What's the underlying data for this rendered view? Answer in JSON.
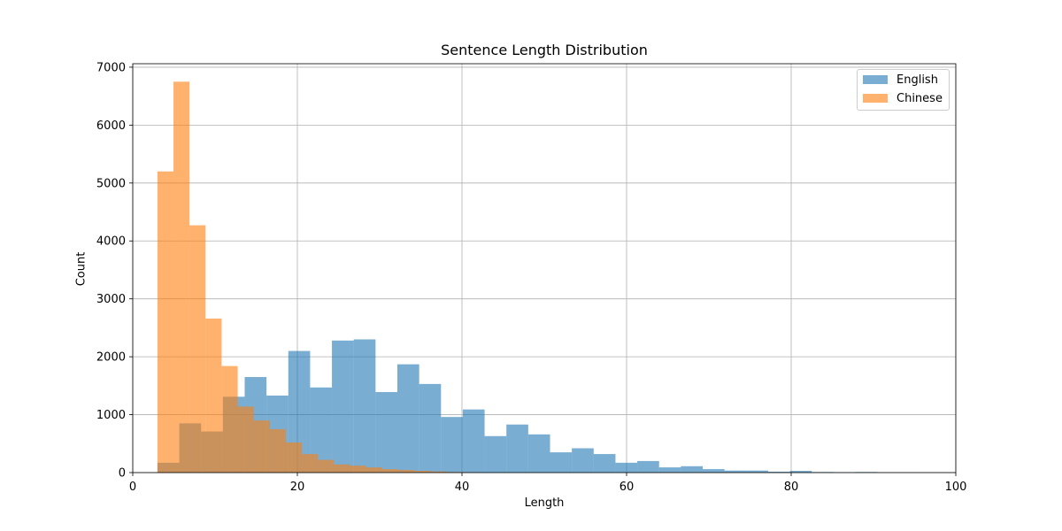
{
  "chart_data": {
    "type": "bar",
    "title": "Sentence Length Distribution",
    "xlabel": "Length",
    "ylabel": "Count",
    "xlim": [
      0,
      100
    ],
    "ylim": [
      0,
      7060
    ],
    "xticks": [
      "0",
      "20",
      "40",
      "60",
      "80",
      "100"
    ],
    "yticks": [
      "0",
      "1000",
      "2000",
      "3000",
      "4000",
      "5000",
      "6000",
      "7000"
    ],
    "grid": true,
    "legend": "top-right",
    "series": [
      {
        "name": "English",
        "color": "#1f77b4",
        "opacity": 0.6,
        "bins": [
          {
            "x0": 3.0,
            "x1": 5.65,
            "count": 170
          },
          {
            "x0": 5.65,
            "x1": 8.3,
            "count": 850
          },
          {
            "x0": 8.3,
            "x1": 10.95,
            "count": 710
          },
          {
            "x0": 10.95,
            "x1": 13.6,
            "count": 1310
          },
          {
            "x0": 13.6,
            "x1": 16.25,
            "count": 1650
          },
          {
            "x0": 16.25,
            "x1": 18.9,
            "count": 1330
          },
          {
            "x0": 18.9,
            "x1": 21.55,
            "count": 2100
          },
          {
            "x0": 21.55,
            "x1": 24.2,
            "count": 1470
          },
          {
            "x0": 24.2,
            "x1": 26.85,
            "count": 2280
          },
          {
            "x0": 26.85,
            "x1": 29.5,
            "count": 2300
          },
          {
            "x0": 29.5,
            "x1": 32.15,
            "count": 1390
          },
          {
            "x0": 32.15,
            "x1": 34.8,
            "count": 1870
          },
          {
            "x0": 34.8,
            "x1": 37.45,
            "count": 1530
          },
          {
            "x0": 37.45,
            "x1": 40.1,
            "count": 960
          },
          {
            "x0": 40.1,
            "x1": 42.75,
            "count": 1090
          },
          {
            "x0": 42.75,
            "x1": 45.4,
            "count": 630
          },
          {
            "x0": 45.4,
            "x1": 48.05,
            "count": 830
          },
          {
            "x0": 48.05,
            "x1": 50.7,
            "count": 660
          },
          {
            "x0": 50.7,
            "x1": 53.35,
            "count": 350
          },
          {
            "x0": 53.35,
            "x1": 56.0,
            "count": 420
          },
          {
            "x0": 56.0,
            "x1": 58.65,
            "count": 320
          },
          {
            "x0": 58.65,
            "x1": 61.3,
            "count": 170
          },
          {
            "x0": 61.3,
            "x1": 63.95,
            "count": 200
          },
          {
            "x0": 63.95,
            "x1": 66.6,
            "count": 90
          },
          {
            "x0": 66.6,
            "x1": 69.25,
            "count": 110
          },
          {
            "x0": 69.25,
            "x1": 71.9,
            "count": 60
          },
          {
            "x0": 71.9,
            "x1": 74.55,
            "count": 35
          },
          {
            "x0": 74.55,
            "x1": 77.2,
            "count": 35
          },
          {
            "x0": 77.2,
            "x1": 79.85,
            "count": 15
          },
          {
            "x0": 79.85,
            "x1": 82.5,
            "count": 30
          },
          {
            "x0": 82.5,
            "x1": 85.15,
            "count": 10
          },
          {
            "x0": 85.15,
            "x1": 87.8,
            "count": 5
          },
          {
            "x0": 87.8,
            "x1": 90.45,
            "count": 10
          },
          {
            "x0": 90.45,
            "x1": 93.1,
            "count": 3
          },
          {
            "x0": 93.1,
            "x1": 95.75,
            "count": 3
          }
        ]
      },
      {
        "name": "Chinese",
        "color": "#ff7f0e",
        "opacity": 0.6,
        "bins": [
          {
            "x0": 3.0,
            "x1": 4.95,
            "count": 5200
          },
          {
            "x0": 4.95,
            "x1": 6.9,
            "count": 6750
          },
          {
            "x0": 6.9,
            "x1": 8.85,
            "count": 4270
          },
          {
            "x0": 8.85,
            "x1": 10.8,
            "count": 2660
          },
          {
            "x0": 10.8,
            "x1": 12.75,
            "count": 1840
          },
          {
            "x0": 12.75,
            "x1": 14.7,
            "count": 1140
          },
          {
            "x0": 14.7,
            "x1": 16.65,
            "count": 900
          },
          {
            "x0": 16.65,
            "x1": 18.6,
            "count": 750
          },
          {
            "x0": 18.6,
            "x1": 20.55,
            "count": 520
          },
          {
            "x0": 20.55,
            "x1": 22.5,
            "count": 320
          },
          {
            "x0": 22.5,
            "x1": 24.45,
            "count": 220
          },
          {
            "x0": 24.45,
            "x1": 26.4,
            "count": 140
          },
          {
            "x0": 26.4,
            "x1": 28.35,
            "count": 120
          },
          {
            "x0": 28.35,
            "x1": 30.3,
            "count": 90
          },
          {
            "x0": 30.3,
            "x1": 32.25,
            "count": 60
          },
          {
            "x0": 32.25,
            "x1": 34.2,
            "count": 45
          },
          {
            "x0": 34.2,
            "x1": 36.15,
            "count": 30
          },
          {
            "x0": 36.15,
            "x1": 38.1,
            "count": 20
          },
          {
            "x0": 38.1,
            "x1": 40.05,
            "count": 10
          },
          {
            "x0": 40.05,
            "x1": 42.0,
            "count": 5
          }
        ]
      }
    ]
  }
}
